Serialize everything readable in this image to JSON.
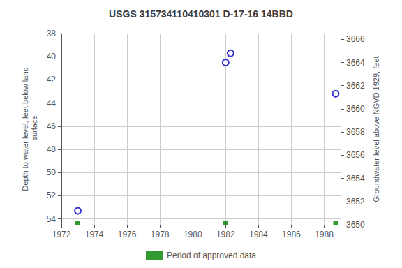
{
  "chart_data": {
    "type": "scatter",
    "title": "USGS 315734110410301 D-17-16 14BBD",
    "ylabel": "Depth to water level, feet below land\n surface",
    "y2label": "Groundwater level above NGVD 1929, feet",
    "xlim": [
      1972,
      1989
    ],
    "xticks": [
      1972,
      1974,
      1976,
      1978,
      1980,
      1982,
      1984,
      1986,
      1988
    ],
    "ylim": [
      54.5,
      38
    ],
    "yticks": [
      38,
      40,
      42,
      44,
      46,
      48,
      50,
      52,
      54
    ],
    "y2lim": [
      3650,
      3666.5
    ],
    "y2ticks": [
      3666,
      3664,
      3662,
      3660,
      3658,
      3656,
      3654,
      3652,
      3650
    ],
    "grid": true,
    "legend": "bottom",
    "series": [
      {
        "type": "scatter",
        "color": "#0000cc",
        "marker": "open_circle",
        "x": [
          1973.0,
          1982.0,
          1982.3,
          1988.7
        ],
        "values": [
          53.3,
          40.5,
          39.7,
          43.2
        ]
      },
      {
        "type": "scatter",
        "name": "Period of approved data",
        "color": "#008000",
        "marker": "square",
        "x": [
          1973.0,
          1982.0,
          1988.7
        ]
      }
    ]
  }
}
